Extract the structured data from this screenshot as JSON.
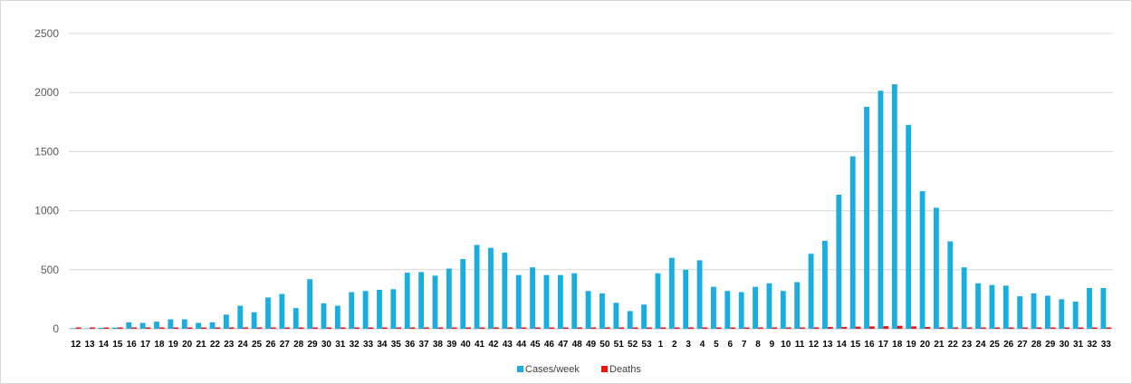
{
  "colors": {
    "cases": "#1aaee0",
    "deaths": "#e81818",
    "grid": "#d9d9d9",
    "axis_text": "#595959"
  },
  "chart_data": {
    "type": "bar",
    "grid": true,
    "legend_position": "bottom",
    "ylim": [
      0,
      2500
    ],
    "yticks": [
      "0",
      "500",
      "1000",
      "1500",
      "2000",
      "2500"
    ],
    "categories": [
      "12",
      "13",
      "14",
      "15",
      "16",
      "17",
      "18",
      "19",
      "20",
      "21",
      "22",
      "23",
      "24",
      "25",
      "26",
      "27",
      "28",
      "29",
      "30",
      "31",
      "32",
      "33",
      "34",
      "35",
      "36",
      "37",
      "38",
      "39",
      "40",
      "41",
      "42",
      "43",
      "44",
      "45",
      "46",
      "47",
      "48",
      "49",
      "50",
      "51",
      "52",
      "53",
      "1",
      "2",
      "3",
      "4",
      "5",
      "6",
      "7",
      "8",
      "9",
      "10",
      "11",
      "12",
      "13",
      "14",
      "15",
      "16",
      "17",
      "18",
      "19",
      "20",
      "21",
      "22",
      "23",
      "24",
      "25",
      "26",
      "27",
      "28",
      "29",
      "30",
      "31",
      "32",
      "33"
    ],
    "series": [
      {
        "name": "Cases/week",
        "color": "#1aaee0",
        "values": [
          5,
          3,
          8,
          10,
          55,
          50,
          60,
          80,
          80,
          50,
          55,
          120,
          195,
          140,
          265,
          295,
          175,
          420,
          215,
          195,
          310,
          320,
          330,
          335,
          475,
          480,
          450,
          510,
          590,
          710,
          685,
          645,
          455,
          520,
          455,
          455,
          470,
          320,
          300,
          220,
          150,
          205,
          470,
          600,
          500,
          580,
          355,
          320,
          310,
          355,
          385,
          320,
          395,
          635,
          745,
          1135,
          1460,
          1880,
          2015,
          2070,
          1725,
          1165,
          1025,
          740,
          520,
          385,
          370,
          365,
          275,
          300,
          280,
          250,
          230,
          345,
          345
        ]
      },
      {
        "name": "Deaths",
        "color": "#e81818",
        "values": [
          3,
          3,
          2,
          2,
          2,
          2,
          2,
          2,
          2,
          2,
          3,
          5,
          5,
          5,
          5,
          5,
          5,
          5,
          5,
          5,
          8,
          8,
          8,
          8,
          8,
          8,
          8,
          8,
          10,
          10,
          12,
          12,
          10,
          10,
          10,
          10,
          10,
          8,
          8,
          8,
          6,
          6,
          8,
          10,
          12,
          12,
          10,
          8,
          8,
          8,
          8,
          8,
          10,
          12,
          15,
          15,
          18,
          20,
          22,
          25,
          20,
          15,
          12,
          10,
          8,
          8,
          8,
          6,
          6,
          6,
          6,
          6,
          5,
          5,
          5
        ]
      }
    ]
  }
}
